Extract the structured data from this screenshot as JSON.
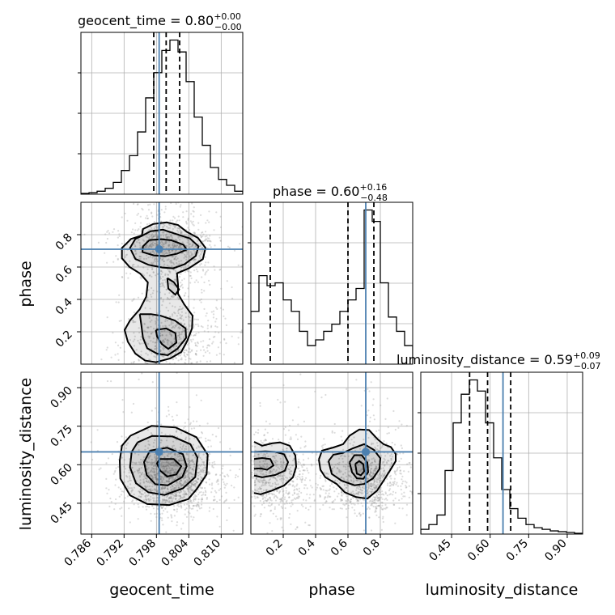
{
  "chart_data": {
    "type": "corner",
    "parameters": [
      {
        "key": "geocent_time",
        "label": "geocent_time",
        "range": [
          0.784,
          0.814
        ],
        "truth": 0.7985,
        "ticks": [
          0.786,
          0.792,
          0.798,
          0.804,
          0.81
        ],
        "tick_labels": [
          "0.786",
          "0.792",
          "0.798",
          "0.804",
          "0.810"
        ],
        "quantiles": [
          0.7975,
          0.7998,
          0.8023
        ],
        "title": {
          "main": "geocent_time = 0.80",
          "sup": "+0.00",
          "sub": "−0.00"
        },
        "hist": [
          0.5,
          1,
          2,
          4,
          8,
          16,
          26,
          42,
          65,
          82,
          97,
          104,
          96,
          76,
          52,
          33,
          18,
          10,
          6,
          2
        ]
      },
      {
        "key": "phase",
        "label": "phase",
        "range": [
          0.0,
          1.0
        ],
        "truth": 0.71,
        "ticks": [
          0.2,
          0.4,
          0.6,
          0.8
        ],
        "tick_labels": [
          "0.2",
          "0.4",
          "0.6",
          "0.8"
        ],
        "quantiles": [
          0.12,
          0.6,
          0.76
        ],
        "title": {
          "main": "phase = 0.60",
          "sup": "+0.16",
          "sub": "−0.48"
        },
        "hist": [
          37,
          62,
          55,
          57,
          45,
          37,
          23,
          13,
          17,
          23,
          28,
          37,
          45,
          53,
          108,
          100,
          57,
          33,
          23,
          13
        ]
      },
      {
        "key": "luminosity_distance",
        "label": "luminosity_distance",
        "range": [
          0.33,
          0.96
        ],
        "truth": 0.65,
        "ticks": [
          0.45,
          0.6,
          0.75,
          0.9
        ],
        "tick_labels": [
          "0.45",
          "0.60",
          "0.75",
          "0.90"
        ],
        "quantiles": [
          0.52,
          0.59,
          0.68
        ],
        "title": {
          "main": "luminosity_distance = 0.59",
          "sup": "+0.09",
          "sub": "−0.07"
        },
        "hist": [
          3,
          6,
          12,
          40,
          70,
          88,
          97,
          90,
          70,
          48,
          28,
          16,
          10,
          6,
          4,
          3,
          2,
          1.5,
          1,
          0.5
        ]
      }
    ],
    "panels_2d": [
      {
        "x": "geocent_time",
        "y": "phase",
        "contours": [
          [
            [
              0.7953,
              0.795
            ],
            [
              0.7955,
              0.835
            ],
            [
              0.7974,
              0.866
            ],
            [
              0.7999,
              0.876
            ],
            [
              0.802,
              0.86
            ],
            [
              0.8036,
              0.818
            ],
            [
              0.8057,
              0.78
            ],
            [
              0.8071,
              0.718
            ],
            [
              0.8066,
              0.649
            ],
            [
              0.804,
              0.592
            ],
            [
              0.8018,
              0.561
            ],
            [
              0.802,
              0.492
            ],
            [
              0.802,
              0.434
            ],
            [
              0.8032,
              0.367
            ],
            [
              0.8047,
              0.299
            ],
            [
              0.8046,
              0.221
            ],
            [
              0.8037,
              0.143
            ],
            [
              0.8026,
              0.075
            ],
            [
              0.8006,
              0.036
            ],
            [
              0.7979,
              0.012
            ],
            [
              0.7959,
              0.022
            ],
            [
              0.7941,
              0.065
            ],
            [
              0.7927,
              0.138
            ],
            [
              0.7921,
              0.211
            ],
            [
              0.7931,
              0.27
            ],
            [
              0.7949,
              0.339
            ],
            [
              0.7961,
              0.417
            ],
            [
              0.7964,
              0.505
            ],
            [
              0.795,
              0.559
            ],
            [
              0.793,
              0.601
            ],
            [
              0.7916,
              0.654
            ],
            [
              0.7916,
              0.718
            ],
            [
              0.7933,
              0.774
            ],
            [
              0.7953,
              0.795
            ]
          ],
          [
            [
              0.7955,
              0.796
            ],
            [
              0.7969,
              0.821
            ],
            [
              0.7992,
              0.831
            ],
            [
              0.8013,
              0.808
            ],
            [
              0.8042,
              0.777
            ],
            [
              0.8058,
              0.728
            ],
            [
              0.8053,
              0.669
            ],
            [
              0.8032,
              0.617
            ],
            [
              0.8011,
              0.592
            ],
            [
              0.7991,
              0.597
            ],
            [
              0.7965,
              0.614
            ],
            [
              0.7941,
              0.65
            ],
            [
              0.7931,
              0.718
            ],
            [
              0.7941,
              0.774
            ],
            [
              0.7955,
              0.796
            ]
          ],
          [
            [
              0.7967,
              0.767
            ],
            [
              0.7989,
              0.772
            ],
            [
              0.8008,
              0.765
            ],
            [
              0.803,
              0.738
            ],
            [
              0.8036,
              0.708
            ],
            [
              0.8018,
              0.682
            ],
            [
              0.7996,
              0.667
            ],
            [
              0.7975,
              0.672
            ],
            [
              0.7954,
              0.693
            ],
            [
              0.7955,
              0.728
            ],
            [
              0.7967,
              0.767
            ]
          ],
          [
            [
              0.8,
              0.532
            ],
            [
              0.8002,
              0.467
            ],
            [
              0.8015,
              0.429
            ],
            [
              0.8022,
              0.462
            ],
            [
              0.8012,
              0.507
            ],
            [
              0.8,
              0.532
            ]
          ],
          [
            [
              0.7949,
              0.309
            ],
            [
              0.7952,
              0.241
            ],
            [
              0.7955,
              0.162
            ],
            [
              0.7963,
              0.098
            ],
            [
              0.7981,
              0.065
            ],
            [
              0.8001,
              0.055
            ],
            [
              0.8019,
              0.095
            ],
            [
              0.8035,
              0.162
            ],
            [
              0.8034,
              0.221
            ],
            [
              0.8014,
              0.27
            ],
            [
              0.7988,
              0.299
            ],
            [
              0.797,
              0.309
            ],
            [
              0.7949,
              0.309
            ]
          ],
          [
            [
              0.7979,
              0.211
            ],
            [
              0.7998,
              0.221
            ],
            [
              0.8015,
              0.192
            ],
            [
              0.8017,
              0.133
            ],
            [
              0.8002,
              0.094
            ],
            [
              0.799,
              0.124
            ],
            [
              0.7981,
              0.172
            ],
            [
              0.7979,
              0.211
            ]
          ]
        ]
      },
      {
        "x": "geocent_time",
        "y": "luminosity_distance",
        "contours": [
          [
            [
              0.7932,
              0.713
            ],
            [
              0.7971,
              0.751
            ],
            [
              0.8016,
              0.745
            ],
            [
              0.8054,
              0.707
            ],
            [
              0.8075,
              0.639
            ],
            [
              0.8073,
              0.562
            ],
            [
              0.8055,
              0.506
            ],
            [
              0.8039,
              0.466
            ],
            [
              0.8004,
              0.443
            ],
            [
              0.7963,
              0.447
            ],
            [
              0.7931,
              0.481
            ],
            [
              0.7913,
              0.546
            ],
            [
              0.7912,
              0.616
            ],
            [
              0.7916,
              0.674
            ],
            [
              0.7932,
              0.713
            ]
          ],
          [
            [
              0.7945,
              0.687
            ],
            [
              0.7972,
              0.712
            ],
            [
              0.801,
              0.71
            ],
            [
              0.8043,
              0.68
            ],
            [
              0.8056,
              0.628
            ],
            [
              0.8052,
              0.552
            ],
            [
              0.8029,
              0.508
            ],
            [
              0.7995,
              0.482
            ],
            [
              0.7965,
              0.493
            ],
            [
              0.7942,
              0.528
            ],
            [
              0.7931,
              0.59
            ],
            [
              0.7934,
              0.65
            ],
            [
              0.7945,
              0.687
            ]
          ],
          [
            [
              0.7968,
              0.655
            ],
            [
              0.8,
              0.666
            ],
            [
              0.8029,
              0.641
            ],
            [
              0.8036,
              0.594
            ],
            [
              0.8028,
              0.552
            ],
            [
              0.8001,
              0.52
            ],
            [
              0.7978,
              0.524
            ],
            [
              0.7962,
              0.56
            ],
            [
              0.7957,
              0.61
            ],
            [
              0.7968,
              0.655
            ]
          ],
          [
            [
              0.7986,
              0.622
            ],
            [
              0.8012,
              0.622
            ],
            [
              0.8026,
              0.594
            ],
            [
              0.8017,
              0.562
            ],
            [
              0.8,
              0.554
            ],
            [
              0.7987,
              0.577
            ],
            [
              0.7981,
              0.605
            ],
            [
              0.7986,
              0.622
            ]
          ]
        ]
      },
      {
        "x": "phase",
        "y": "luminosity_distance",
        "contours": [
          [
            [
              0.02,
              0.689
            ],
            [
              0.07,
              0.674
            ],
            [
              0.13,
              0.683
            ],
            [
              0.18,
              0.687
            ],
            [
              0.24,
              0.674
            ],
            [
              0.275,
              0.636
            ],
            [
              0.28,
              0.592
            ],
            [
              0.26,
              0.551
            ],
            [
              0.205,
              0.519
            ],
            [
              0.13,
              0.499
            ],
            [
              0.06,
              0.485
            ],
            [
              0.02,
              0.49
            ]
          ],
          [
            [
              0.42,
              0.62
            ],
            [
              0.44,
              0.655
            ],
            [
              0.51,
              0.667
            ],
            [
              0.57,
              0.68
            ],
            [
              0.61,
              0.713
            ],
            [
              0.67,
              0.737
            ],
            [
              0.73,
              0.735
            ],
            [
              0.785,
              0.698
            ],
            [
              0.82,
              0.68
            ],
            [
              0.865,
              0.669
            ],
            [
              0.895,
              0.642
            ],
            [
              0.895,
              0.614
            ],
            [
              0.86,
              0.578
            ],
            [
              0.82,
              0.538
            ],
            [
              0.78,
              0.499
            ],
            [
              0.72,
              0.468
            ],
            [
              0.65,
              0.474
            ],
            [
              0.58,
              0.493
            ],
            [
              0.53,
              0.525
            ],
            [
              0.46,
              0.551
            ],
            [
              0.43,
              0.58
            ],
            [
              0.42,
              0.62
            ]
          ],
          [
            [
              0.02,
              0.65
            ],
            [
              0.09,
              0.652
            ],
            [
              0.15,
              0.65
            ],
            [
              0.205,
              0.641
            ],
            [
              0.23,
              0.61
            ],
            [
              0.21,
              0.577
            ],
            [
              0.15,
              0.56
            ],
            [
              0.07,
              0.551
            ],
            [
              0.02,
              0.558
            ]
          ],
          [
            [
              0.02,
              0.622
            ],
            [
              0.07,
              0.626
            ],
            [
              0.12,
              0.622
            ],
            [
              0.14,
              0.597
            ],
            [
              0.1,
              0.58
            ],
            [
              0.06,
              0.586
            ],
            [
              0.02,
              0.584
            ]
          ],
          [
            [
              0.48,
              0.614
            ],
            [
              0.51,
              0.639
            ],
            [
              0.57,
              0.646
            ],
            [
              0.63,
              0.664
            ],
            [
              0.7,
              0.68
            ],
            [
              0.76,
              0.658
            ],
            [
              0.8,
              0.625
            ],
            [
              0.795,
              0.584
            ],
            [
              0.755,
              0.547
            ],
            [
              0.7,
              0.525
            ],
            [
              0.64,
              0.52
            ],
            [
              0.56,
              0.538
            ],
            [
              0.5,
              0.564
            ],
            [
              0.48,
              0.614
            ]
          ],
          [
            [
              0.61,
              0.609
            ],
            [
              0.64,
              0.637
            ],
            [
              0.685,
              0.637
            ],
            [
              0.72,
              0.608
            ],
            [
              0.725,
              0.571
            ],
            [
              0.695,
              0.545
            ],
            [
              0.655,
              0.547
            ],
            [
              0.625,
              0.571
            ],
            [
              0.61,
              0.609
            ]
          ],
          [
            [
              0.645,
              0.603
            ],
            [
              0.67,
              0.614
            ],
            [
              0.695,
              0.602
            ],
            [
              0.7,
              0.574
            ],
            [
              0.68,
              0.559
            ],
            [
              0.655,
              0.565
            ],
            [
              0.645,
              0.603
            ]
          ]
        ]
      }
    ],
    "grid": true,
    "truth_color": "#4c80b0",
    "quantile_color": "#000000",
    "hist_color": "#000000",
    "contour_color": "#000000",
    "point_color": "#9a9a9a"
  }
}
